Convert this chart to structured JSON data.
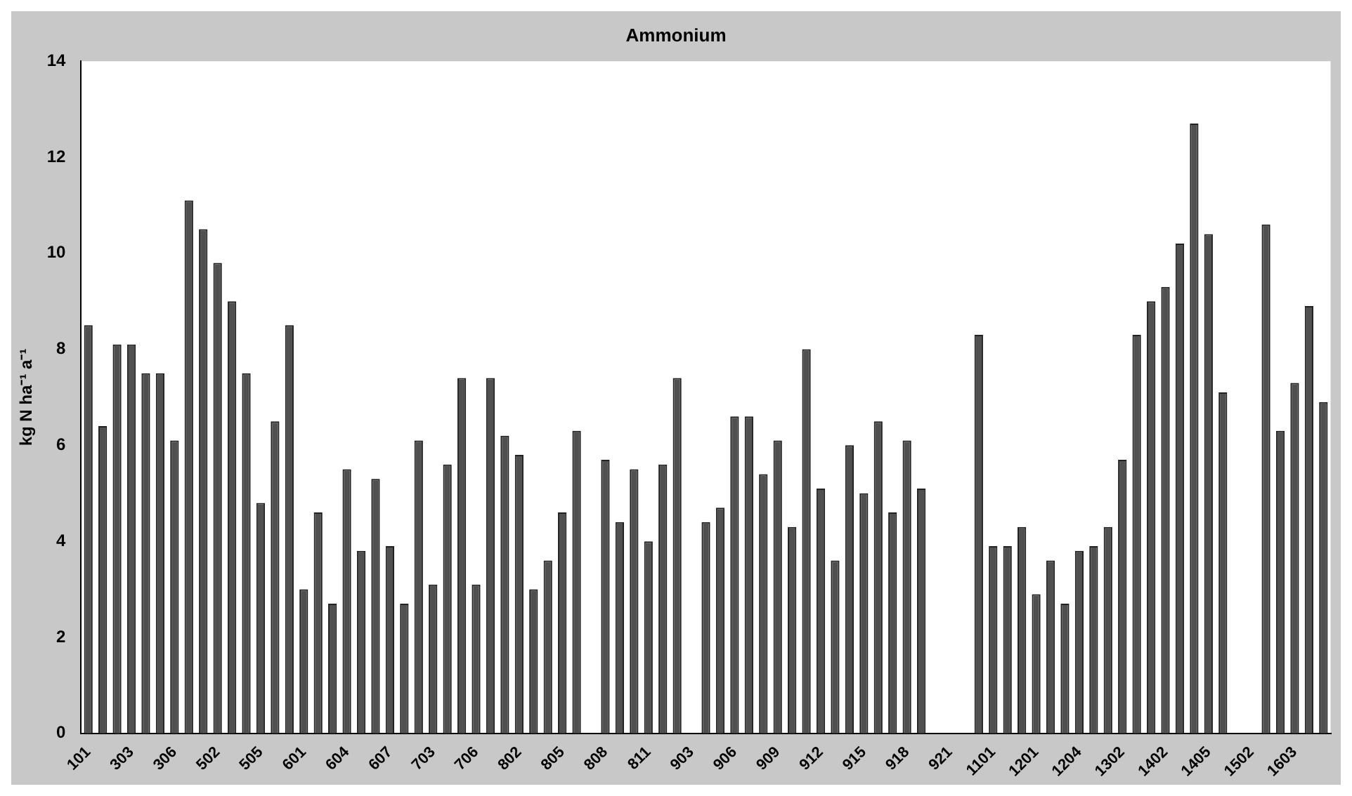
{
  "chart_data": {
    "type": "bar",
    "title": "Ammonium",
    "ylabel": "kg N ha⁻¹ a⁻¹",
    "categories": [
      "101",
      null,
      null,
      "303",
      null,
      null,
      "306",
      null,
      null,
      "502",
      null,
      null,
      "505",
      null,
      null,
      "601",
      null,
      null,
      "604",
      null,
      null,
      "607",
      null,
      null,
      "703",
      null,
      null,
      "706",
      null,
      null,
      "802",
      null,
      null,
      "805",
      null,
      null,
      "808",
      null,
      null,
      "811",
      null,
      null,
      "903",
      null,
      null,
      "906",
      null,
      null,
      "909",
      null,
      null,
      "912",
      null,
      null,
      "915",
      null,
      null,
      "918",
      null,
      null,
      "921",
      null,
      null,
      "1101",
      null,
      null,
      "1201",
      null,
      null,
      "1204",
      null,
      null,
      "1302",
      null,
      null,
      "1402",
      null,
      null,
      "1405",
      null,
      null,
      "1502",
      null,
      null,
      "1603",
      null,
      null
    ],
    "values": [
      8.5,
      6.4,
      8.1,
      8.1,
      7.5,
      7.5,
      6.1,
      11.1,
      10.5,
      9.8,
      9.0,
      7.5,
      4.8,
      6.5,
      8.5,
      3.0,
      4.6,
      2.7,
      5.5,
      3.8,
      5.3,
      3.9,
      2.7,
      6.1,
      3.1,
      5.6,
      7.4,
      3.1,
      7.4,
      6.2,
      5.8,
      3.0,
      3.6,
      4.6,
      6.3,
      null,
      5.7,
      4.4,
      5.5,
      4.0,
      5.6,
      7.4,
      null,
      4.4,
      4.7,
      6.6,
      6.6,
      5.4,
      6.1,
      4.3,
      8.0,
      5.1,
      3.6,
      6.0,
      5.0,
      6.5,
      4.6,
      6.1,
      5.1,
      null,
      null,
      null,
      8.3,
      3.9,
      3.9,
      4.3,
      2.9,
      3.6,
      2.7,
      3.8,
      3.9,
      4.3,
      5.7,
      8.3,
      9.0,
      9.3,
      10.2,
      12.7,
      10.4,
      7.1,
      null,
      null,
      10.6,
      6.3,
      7.3,
      8.9,
      6.9
    ],
    "color": "#505050",
    "ylim": [
      0,
      14
    ],
    "yticks": [
      0,
      2,
      4,
      6,
      8,
      10,
      12,
      14
    ],
    "grid": false,
    "legend": false
  }
}
